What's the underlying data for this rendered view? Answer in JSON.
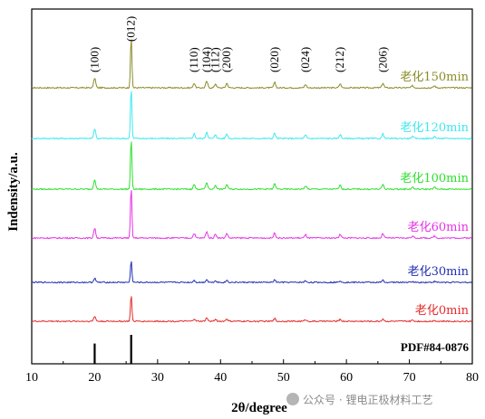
{
  "chart_data": {
    "type": "line",
    "title": "",
    "xlabel": "2θ/degree",
    "ylabel": "Indensity/a.u.",
    "xlim": [
      10,
      80
    ],
    "x_ticks": [
      10,
      20,
      30,
      40,
      50,
      60,
      70,
      80
    ],
    "grid": false,
    "legend": "inline labels at right of each trace",
    "peak_labels": [
      {
        "label": "(100)",
        "x": 20.0
      },
      {
        "label": "(012)",
        "x": 25.8
      },
      {
        "label": "(110)",
        "x": 35.8
      },
      {
        "label": "(104)",
        "x": 37.8
      },
      {
        "label": "(112)",
        "x": 39.2
      },
      {
        "label": "(200)",
        "x": 41.0
      },
      {
        "label": "(020)",
        "x": 48.6
      },
      {
        "label": "(024)",
        "x": 53.5
      },
      {
        "label": "(212)",
        "x": 59.0
      },
      {
        "label": "(206)",
        "x": 65.8
      }
    ],
    "peaks": [
      {
        "x": 20.0,
        "rel": 0.15
      },
      {
        "x": 25.8,
        "rel": 1.0
      },
      {
        "x": 35.8,
        "rel": 0.07
      },
      {
        "x": 37.8,
        "rel": 0.1
      },
      {
        "x": 39.2,
        "rel": 0.06
      },
      {
        "x": 41.0,
        "rel": 0.07
      },
      {
        "x": 48.6,
        "rel": 0.08
      },
      {
        "x": 53.5,
        "rel": 0.05
      },
      {
        "x": 59.0,
        "rel": 0.06
      },
      {
        "x": 65.8,
        "rel": 0.07
      },
      {
        "x": 70.5,
        "rel": 0.03
      },
      {
        "x": 74.0,
        "rel": 0.03
      }
    ],
    "series": [
      {
        "name": "老化150min",
        "color": "#8b8b2a",
        "main_peak": 0.51
      },
      {
        "name": "老化120min",
        "color": "#3fe8ee",
        "main_peak": 0.51
      },
      {
        "name": "老化100min",
        "color": "#2ee02e",
        "main_peak": 0.51
      },
      {
        "name": "老化60min",
        "color": "#e633e6",
        "main_peak": 0.51
      },
      {
        "name": "老化30min",
        "color": "#1f2fb0",
        "main_peak": 0.22
      },
      {
        "name": "老化0min",
        "color": "#e32b2b",
        "main_peak": 0.26
      }
    ],
    "reference": {
      "name": "PDF#84-0876",
      "color": "#000000",
      "lines": [
        {
          "x": 20.0,
          "rel": 0.7
        },
        {
          "x": 25.8,
          "rel": 1.0
        }
      ]
    }
  },
  "watermark": "公众号 · 锂电正极材料工艺",
  "colors": {
    "axis": "#000000",
    "background": "#ffffff"
  }
}
